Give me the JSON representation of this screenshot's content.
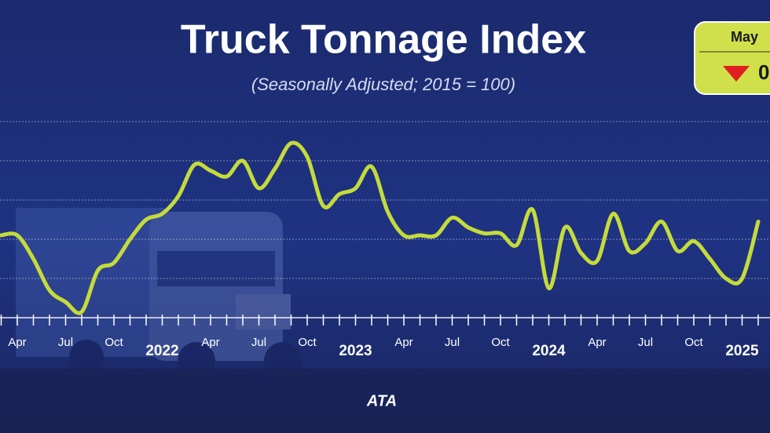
{
  "chart_data": {
    "type": "line",
    "title": "Truck Tonnage Index",
    "subtitle": "(Seasonally Adjusted; 2015 = 100)",
    "callout": {
      "month": "May",
      "value": "0"
    },
    "logo": "ATA",
    "categories": [
      null,
      "Apr",
      null,
      null,
      "Jul",
      null,
      null,
      "Oct",
      null,
      null,
      "2022",
      null,
      null,
      "Apr",
      null,
      null,
      "Jul",
      null,
      null,
      "Oct",
      null,
      null,
      "2023",
      null,
      null,
      "Apr",
      null,
      null,
      "Jul",
      null,
      null,
      "Oct",
      null,
      null,
      "2024",
      null,
      null,
      "Apr",
      null,
      null,
      "Jul",
      null,
      null,
      "Oct",
      null,
      null,
      "2025",
      null
    ],
    "series": [
      {
        "color": "#c5db3a",
        "values": [
          112.2,
          112.2,
          111.0,
          109.4,
          108.8,
          108.3,
          110.4,
          110.8,
          112.0,
          113.0,
          113.3,
          114.2,
          115.8,
          115.5,
          115.2,
          116.0,
          114.6,
          115.6,
          116.9,
          116.2,
          113.7,
          114.3,
          114.6,
          115.7,
          113.4,
          112.2,
          112.2,
          112.2,
          113.1,
          112.6,
          112.3,
          112.3,
          111.7,
          113.5,
          109.5,
          112.6,
          111.3,
          110.9,
          113.3,
          111.4,
          111.8,
          112.9,
          111.4,
          111.9,
          111.0,
          110.0,
          110.0,
          112.9
        ]
      }
    ],
    "ylim": [
      108,
      118
    ],
    "yticks": [
      108,
      110,
      112,
      114,
      116,
      118
    ],
    "grid": true
  }
}
